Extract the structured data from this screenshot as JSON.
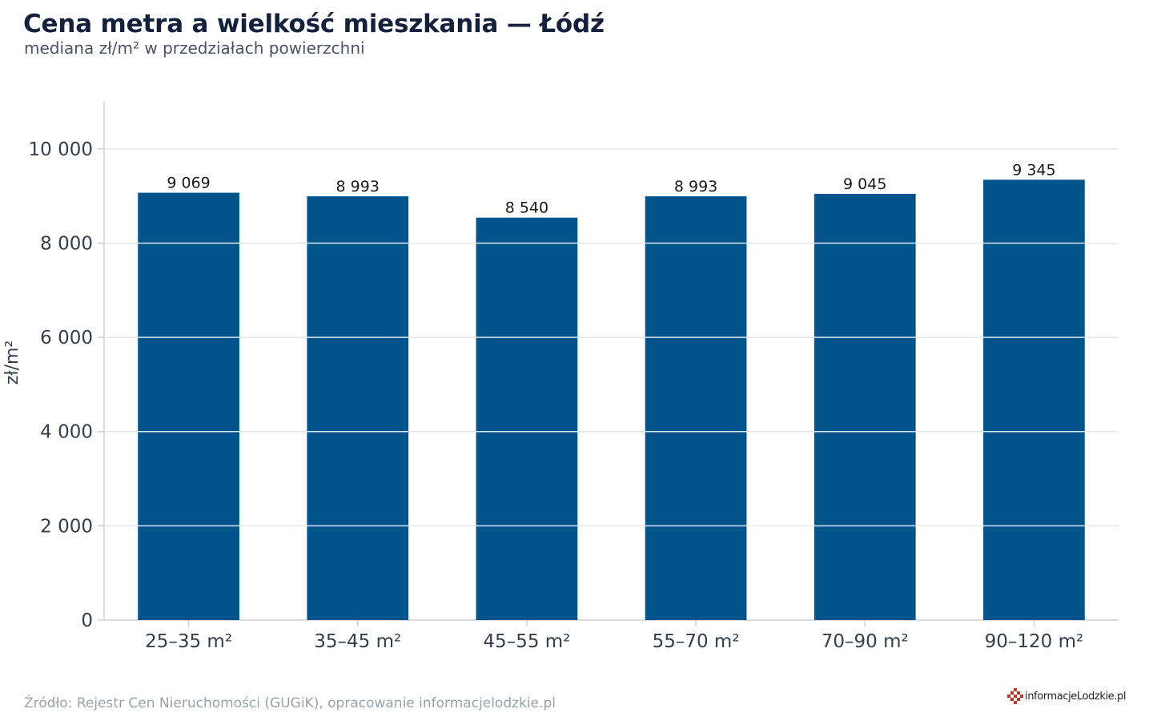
{
  "title": "Cena metra a wielkość mieszkania — Łódź",
  "subtitle": "mediana zł/m² w przedziałach powierzchni",
  "source": "Źródło: Rejestr Cen Nieruchomości (GUGiK), opracowanie informacjelodzkie.pl",
  "logo_text": "informacjeLodzkie.pl",
  "colors": {
    "bar": "#00548c",
    "grid": "#e6e6e6",
    "axis": "#d0d0d0",
    "text": "#333f4d",
    "title": "#14213d",
    "logo_accent": "#c0392b"
  },
  "chart_data": {
    "type": "bar",
    "title": "Cena metra a wielkość mieszkania — Łódź",
    "subtitle": "mediana zł/m² w przedziałach powierzchni",
    "xlabel": "",
    "ylabel": "zł/m²",
    "categories": [
      "25–35 m²",
      "35–45 m²",
      "45–55 m²",
      "55–70 m²",
      "70–90 m²",
      "90–120 m²"
    ],
    "values": [
      9069,
      8993,
      8540,
      8993,
      9045,
      9345
    ],
    "value_labels": [
      "9 069",
      "8 993",
      "8 540",
      "8 993",
      "9 045",
      "9 345"
    ],
    "yticks": [
      0,
      2000,
      4000,
      6000,
      8000,
      10000
    ],
    "ytick_labels": [
      "0",
      "2 000",
      "4 000",
      "6 000",
      "8 000",
      "10 000"
    ],
    "ylim": [
      0,
      11000
    ],
    "grid": true,
    "legend": false
  }
}
